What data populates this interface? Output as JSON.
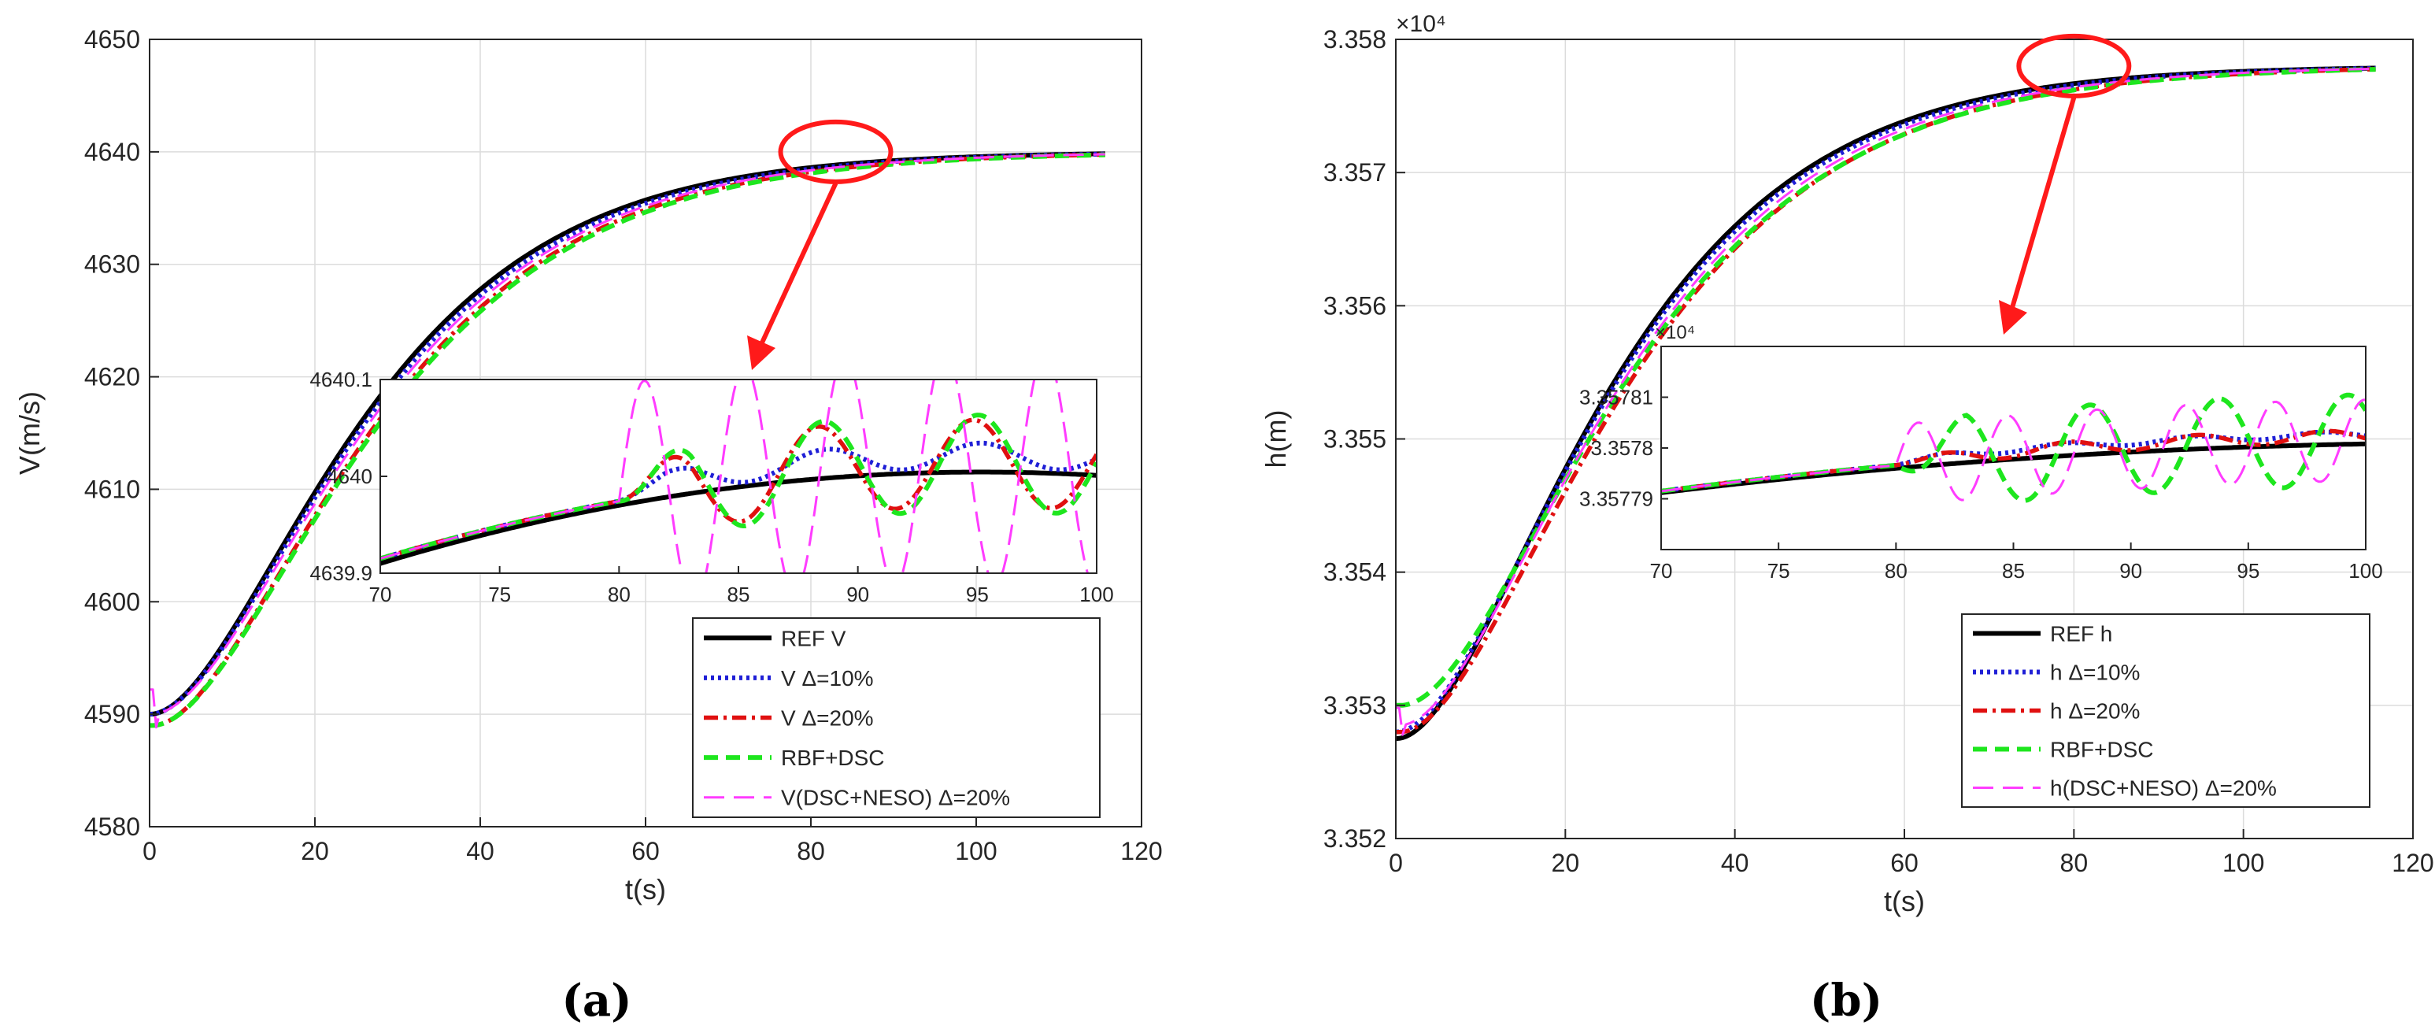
{
  "panels": [
    {
      "caption": "(a)",
      "chart_data": {
        "type": "line",
        "xlabel": "t(s)",
        "ylabel": "V(m/s)",
        "xlim": [
          0,
          120
        ],
        "ylim": [
          4580,
          4650
        ],
        "xticks": [
          0,
          20,
          40,
          60,
          80,
          100,
          120
        ],
        "xtick_labels": [
          "0",
          "20",
          "40",
          "60",
          "80",
          "100",
          "120"
        ],
        "yticks": [
          4580,
          4590,
          4600,
          4610,
          4620,
          4630,
          4640,
          4650
        ],
        "ytick_labels": [
          "4580",
          "4590",
          "4600",
          "4610",
          "4620",
          "4630",
          "4640",
          "4650"
        ],
        "exponent_label": "",
        "grid": true,
        "legend_position": "bottom-right",
        "legend": [
          "REF V",
          "V  Δ=10%",
          "V  Δ=20%",
          "RBF+DSC",
          "V(DSC+NESO)  Δ=20%"
        ],
        "series": [
          {
            "name": "REF V",
            "color": "#000000",
            "style": "solid",
            "t0": 0,
            "y0": 4590,
            "y1": 4640,
            "tau": 14.7
          },
          {
            "name": "V  Δ=10%",
            "color": "#1f1fd6",
            "style": "dotted",
            "t0": 0,
            "y0": 4590,
            "y1": 4640,
            "tau": 15.0
          },
          {
            "name": "V  Δ=20%",
            "color": "#e01010",
            "style": "dashdot",
            "t0": 0.3,
            "y0": 4589,
            "y1": 4640,
            "tau": 15.4
          },
          {
            "name": "RBF+DSC",
            "color": "#1ee61e",
            "style": "dashed",
            "t0": 0.3,
            "y0": 4589,
            "y1": 4640,
            "tau": 15.6
          },
          {
            "name": "V(DSC+NESO)  Δ=20%",
            "color": "#ff3cff",
            "style": "longdash",
            "t0": 0.2,
            "y0": 4590,
            "y1": 4640,
            "tau": 15.2
          }
        ],
        "inset": {
          "xlim": [
            70,
            100
          ],
          "ylim": [
            4639.9,
            4640.1
          ],
          "xticks": [
            70,
            75,
            80,
            85,
            90,
            95,
            100
          ],
          "xtick_labels": [
            "70",
            "75",
            "80",
            "85",
            "90",
            "95",
            "100"
          ],
          "yticks": [
            4639.9,
            4640,
            4640.1
          ],
          "ytick_labels": [
            "4639.9",
            "4640",
            "4640.1"
          ],
          "exponent_label": "",
          "series": [
            {
              "name": "REF V",
              "base": [
                4639.91,
                4639.989,
                4640.001
              ],
              "osc_start": 80,
              "amp": 0,
              "period": 6.5,
              "phase": 0,
              "offset": 0
            },
            {
              "name": "V  Δ=10%",
              "base": [
                4639.915,
                4639.993,
                4640.005
              ],
              "osc_start": 80,
              "amp": 0.013,
              "period": 6.5,
              "phase": 0.5,
              "offset": 0.013
            },
            {
              "name": "V  Δ=20%",
              "base": [
                4639.915,
                4639.993,
                4640.005
              ],
              "osc_start": 80,
              "amp": 0.045,
              "period": 6.5,
              "phase": 0.2,
              "offset": 0.005
            },
            {
              "name": "RBF+DSC",
              "base": [
                4639.915,
                4639.993,
                4640.005
              ],
              "osc_start": 80,
              "amp": 0.05,
              "period": 6.5,
              "phase": 0.4,
              "offset": 0.005
            },
            {
              "name": "V(DSC+NESO)  Δ=20%",
              "base": [
                4639.915,
                4639.993,
                4640.005
              ],
              "osc_start": 80,
              "amp": 0.12,
              "period": 4.2,
              "phase": 0,
              "offset": 0
            }
          ]
        }
      }
    },
    {
      "caption": "(b)",
      "chart_data": {
        "type": "line",
        "xlabel": "t(s)",
        "ylabel": "h(m)",
        "xlim": [
          0,
          120
        ],
        "ylim": [
          33520,
          33580
        ],
        "xticks": [
          0,
          20,
          40,
          60,
          80,
          100,
          120
        ],
        "xtick_labels": [
          "0",
          "20",
          "40",
          "60",
          "80",
          "100",
          "120"
        ],
        "yticks": [
          33520,
          33530,
          33540,
          33550,
          33560,
          33570,
          33580
        ],
        "ytick_labels": [
          "3.352",
          "3.353",
          "3.354",
          "3.355",
          "3.356",
          "3.357",
          "3.358"
        ],
        "exponent_label": "×10⁴",
        "grid": true,
        "legend_position": "bottom-right",
        "legend": [
          "REF h",
          "h  Δ=10%",
          "h  Δ=20%",
          "RBF+DSC",
          "h(DSC+NESO)  Δ=20%"
        ],
        "series": [
          {
            "name": "REF h",
            "color": "#000000",
            "style": "solid",
            "t0": 0,
            "y0": 33527.5,
            "y1": 33578,
            "tau": 14.5
          },
          {
            "name": "h  Δ=10%",
            "color": "#1f1fd6",
            "style": "dotted",
            "t0": 0,
            "y0": 33528,
            "y1": 33578,
            "tau": 14.8
          },
          {
            "name": "h  Δ=20%",
            "color": "#e01010",
            "style": "dashdot",
            "t0": 0.5,
            "y0": 33528,
            "y1": 33578,
            "tau": 15.4
          },
          {
            "name": "RBF+DSC",
            "color": "#1ee61e",
            "style": "dashed",
            "t0": 0.6,
            "y0": 33530,
            "y1": 33578,
            "tau": 15.6
          },
          {
            "name": "h(DSC+NESO)  Δ=20%",
            "color": "#ff3cff",
            "style": "longdash",
            "t0": 0.4,
            "y0": 33528.5,
            "y1": 33578,
            "tau": 15.1
          }
        ],
        "inset": {
          "xlim": [
            70,
            100
          ],
          "ylim": [
            33577.8,
            33578.2
          ],
          "xticks": [
            70,
            75,
            80,
            85,
            90,
            95,
            100
          ],
          "xtick_labels": [
            "70",
            "75",
            "80",
            "85",
            "90",
            "95",
            "100"
          ],
          "yticks": [
            33577.9,
            33578.0,
            33578.1
          ],
          "ytick_labels": [
            "3.35779",
            "3.3578",
            "3.35781"
          ],
          "exponent_label": "×10⁴",
          "series": [
            {
              "name": "REF h",
              "base": [
                33577.912,
                33577.978,
                33578.008
              ],
              "osc_start": 80,
              "amp": 0,
              "period": 6,
              "phase": 0,
              "offset": 0
            },
            {
              "name": "h  Δ=10%",
              "base": [
                33577.915,
                33577.985,
                33578.015
              ],
              "osc_start": 80,
              "amp": 0.006,
              "period": 5.5,
              "phase": 0.3,
              "offset": 0.012
            },
            {
              "name": "h  Δ=20%",
              "base": [
                33577.915,
                33577.985,
                33578.015
              ],
              "osc_start": 80,
              "amp": 0.012,
              "period": 5.5,
              "phase": 0.5,
              "offset": 0.008
            },
            {
              "name": "RBF+DSC",
              "base": [
                33577.915,
                33577.985,
                33578.015
              ],
              "osc_start": 80,
              "amp": 0.09,
              "period": 5.5,
              "phase": 1.57,
              "offset": 0.0
            },
            {
              "name": "h(DSC+NESO)  Δ=20%",
              "base": [
                33577.915,
                33577.985,
                33578.015
              ],
              "osc_start": 80,
              "amp": 0.08,
              "period": 3.8,
              "phase": 0,
              "offset": 0.0
            }
          ]
        }
      }
    }
  ]
}
